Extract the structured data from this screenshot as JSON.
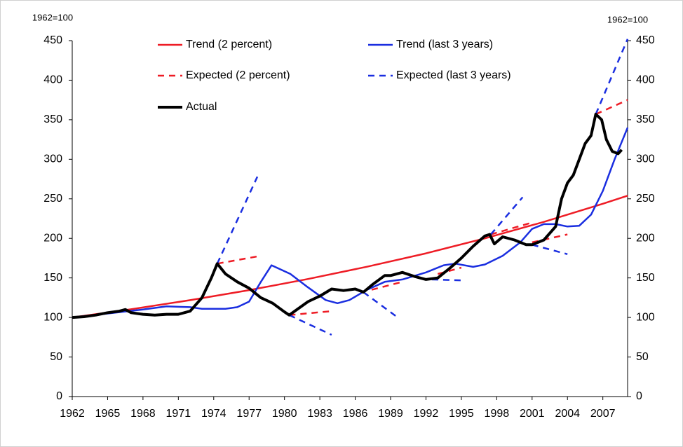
{
  "chart_data": {
    "type": "line",
    "y_label": "1962=100",
    "y2_label": "1962=100",
    "xlim": [
      1962,
      2009.1
    ],
    "xticks": [
      1962,
      1965,
      1968,
      1971,
      1974,
      1977,
      1980,
      1983,
      1986,
      1989,
      1992,
      1995,
      1998,
      2001,
      2004,
      2007
    ],
    "ylim": [
      0,
      450
    ],
    "yticks": [
      0,
      50,
      100,
      150,
      200,
      250,
      300,
      350,
      400,
      450
    ],
    "y2lim": [
      0,
      450
    ],
    "y2ticks": [
      0,
      50,
      100,
      150,
      200,
      250,
      300,
      350,
      400,
      450
    ],
    "legend": "top",
    "series": [
      {
        "name": "Trend (2 percent)",
        "color": "#ee1c25",
        "dashed": false,
        "line_width": 2.5,
        "x": [
          1962,
          1967,
          1972,
          1977,
          1982,
          1987,
          1992,
          1997,
          2002,
          2007,
          2009.1
        ],
        "values": [
          100,
          110.4,
          121.9,
          134.6,
          148.6,
          164.1,
          181.1,
          200,
          220.8,
          243.8,
          254
        ]
      },
      {
        "name": "Trend (last 3 years)",
        "color": "#1a2ee0",
        "dashed": false,
        "line_width": 2.5,
        "x": [
          1962,
          1965,
          1968,
          1970,
          1972,
          1973,
          1975,
          1976,
          1977,
          1978,
          1978.9,
          1980.5,
          1982,
          1983.5,
          1984.5,
          1985.5,
          1987,
          1988.5,
          1990,
          1992,
          1993.5,
          1994.5,
          1996,
          1997,
          1998.5,
          2000,
          2001,
          2002,
          2003,
          2004,
          2005,
          2006,
          2007,
          2008,
          2009.1
        ],
        "values": [
          100,
          105,
          110,
          114,
          113,
          111,
          111,
          113,
          120,
          145,
          166,
          155,
          138,
          122,
          118,
          122,
          135,
          145,
          148,
          157,
          166,
          168,
          164,
          167,
          178,
          195,
          212,
          218,
          218,
          215,
          216,
          230,
          260,
          300,
          340
        ]
      },
      {
        "name": "Expected (2 percent)",
        "color": "#ee1c25",
        "dashed": true,
        "line_width": 2.5,
        "x": [
          1974.3,
          1978,
          null,
          1980.4,
          1984,
          null,
          1987.4,
          1990,
          null,
          1993,
          1995,
          null,
          1997.5,
          2001,
          null,
          2001,
          2004,
          null,
          2006.4,
          2009.1
        ],
        "values": [
          168,
          178,
          null,
          103,
          108,
          null,
          135,
          145,
          null,
          155,
          163,
          null,
          205,
          220,
          null,
          195,
          205,
          null,
          357,
          375
        ]
      },
      {
        "name": "Expected (last 3 years)",
        "color": "#1a2ee0",
        "dashed": true,
        "line_width": 2.5,
        "x": [
          1974.3,
          1977.7,
          null,
          1980.4,
          1984,
          null,
          1986.7,
          1989.6,
          null,
          1992.5,
          1995,
          null,
          1997.5,
          2000.2,
          null,
          2001,
          2004,
          null,
          2006.4,
          2009.1
        ],
        "values": [
          168,
          278,
          null,
          103,
          78,
          null,
          132,
          100,
          null,
          148,
          147,
          null,
          205,
          252,
          null,
          192,
          180,
          null,
          357,
          452
        ]
      },
      {
        "name": "Actual",
        "color": "#000000",
        "dashed": false,
        "line_width": 4,
        "x": [
          1962,
          1963,
          1964,
          1965,
          1966,
          1966.5,
          1967,
          1968,
          1969,
          1970,
          1971,
          1972,
          1973,
          1973.8,
          1974.3,
          1975,
          1976,
          1977,
          1978,
          1979,
          1980,
          1980.4,
          1982,
          1983,
          1984,
          1985,
          1986,
          1986.7,
          1987.5,
          1988.5,
          1989,
          1990,
          1991,
          1992,
          1993,
          1994,
          1995,
          1996,
          1997,
          1997.4,
          1997.8,
          1998.5,
          1999.5,
          2000.5,
          2001,
          2002,
          2003,
          2003.5,
          2004,
          2004.5,
          2005,
          2005.5,
          2006,
          2006.4,
          2006.9,
          2007.3,
          2007.8,
          2008.3,
          2008.6
        ],
        "values": [
          100,
          101,
          103,
          106,
          108,
          110,
          106,
          104,
          103,
          104,
          104,
          108,
          125,
          150,
          168,
          155,
          145,
          137,
          125,
          118,
          107,
          103,
          120,
          127,
          136,
          134,
          136,
          132,
          142,
          153,
          153,
          157,
          152,
          148,
          150,
          162,
          175,
          190,
          203,
          205,
          193,
          202,
          198,
          192,
          192,
          198,
          215,
          250,
          270,
          280,
          300,
          320,
          330,
          357,
          350,
          325,
          310,
          307,
          312
        ]
      }
    ]
  }
}
